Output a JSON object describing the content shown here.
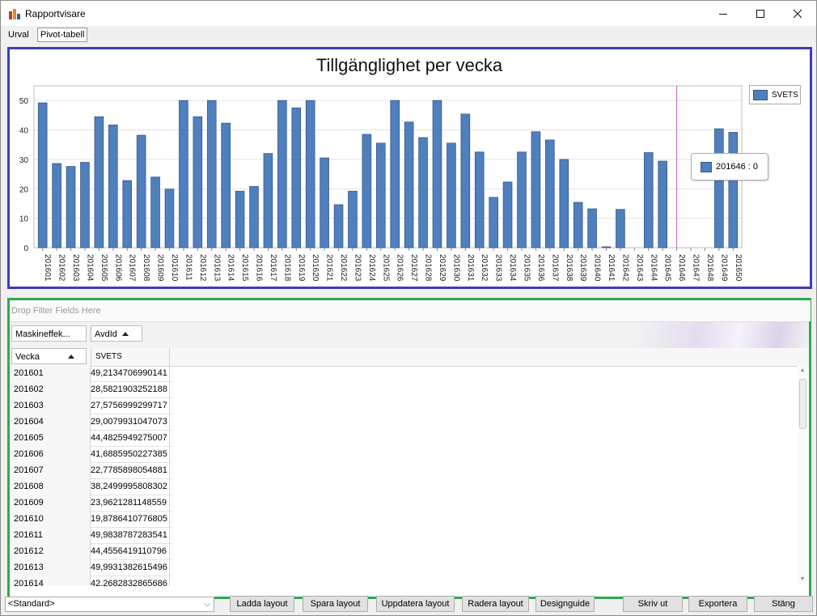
{
  "window": {
    "title": "Rapportvisare"
  },
  "tabs": [
    {
      "label": "Urval"
    },
    {
      "label": "Pivot-tabell"
    }
  ],
  "chart_panel": {
    "tooltip": "201646 : 0"
  },
  "chart_data": {
    "type": "bar",
    "title": "Tillgänglighet per vecka",
    "xlabel": "",
    "ylabel": "",
    "ylim": [
      0,
      55
    ],
    "yticks": [
      0,
      10,
      20,
      30,
      40,
      50
    ],
    "grid": true,
    "legend_position": "top-right",
    "categories": [
      "201601",
      "201602",
      "201603",
      "201604",
      "201605",
      "201606",
      "201607",
      "201608",
      "201609",
      "201610",
      "201611",
      "201612",
      "201613",
      "201614",
      "201615",
      "201616",
      "201617",
      "201618",
      "201619",
      "201620",
      "201621",
      "201622",
      "201623",
      "201624",
      "201625",
      "201626",
      "201627",
      "201628",
      "201629",
      "201630",
      "201631",
      "201632",
      "201633",
      "201634",
      "201635",
      "201636",
      "201637",
      "201638",
      "201639",
      "201640",
      "201641",
      "201642",
      "201643",
      "201644",
      "201645",
      "201646",
      "201647",
      "201648",
      "201649",
      "201650"
    ],
    "series": [
      {
        "name": "SVETS",
        "color": "#4f7fbd",
        "values": [
          49.2,
          28.6,
          27.6,
          29.0,
          44.5,
          41.7,
          22.8,
          38.2,
          24.0,
          19.9,
          50.0,
          44.5,
          50.0,
          42.3,
          19.2,
          20.8,
          32.0,
          50.0,
          47.5,
          50.0,
          30.5,
          14.6,
          19.2,
          38.5,
          35.5,
          50.0,
          42.7,
          37.4,
          50.0,
          35.5,
          45.4,
          32.5,
          17.1,
          22.3,
          32.5,
          39.4,
          36.6,
          30.0,
          15.4,
          13.2,
          0.3,
          13.0,
          0,
          32.3,
          29.4,
          0,
          0,
          0,
          40.4,
          39.2
        ]
      }
    ]
  },
  "pivot": {
    "filter_placeholder": "Drop Filter Fields Here",
    "data_field": "Maskineffek...",
    "column_field": "AvdId",
    "row_field": "Vecka",
    "column_header": "SVETS",
    "rows": [
      {
        "vecka": "201601",
        "value": "49,2134706990141"
      },
      {
        "vecka": "201602",
        "value": "28,5821903252188"
      },
      {
        "vecka": "201603",
        "value": "27,5756999299717"
      },
      {
        "vecka": "201604",
        "value": "29,0079931047073"
      },
      {
        "vecka": "201605",
        "value": "44,4825949275007"
      },
      {
        "vecka": "201606",
        "value": "41,6885950227385"
      },
      {
        "vecka": "201607",
        "value": "22,7785898054881"
      },
      {
        "vecka": "201608",
        "value": "38,2499995808302"
      },
      {
        "vecka": "201609",
        "value": "23,9621281148559"
      },
      {
        "vecka": "201610",
        "value": "19,8786410776805"
      },
      {
        "vecka": "201611",
        "value": "49,9838787283541"
      },
      {
        "vecka": "201612",
        "value": "44,4556419110796"
      },
      {
        "vecka": "201613",
        "value": "49,9931382615496"
      },
      {
        "vecka": "201614",
        "value": "42,2682832865686"
      }
    ]
  },
  "bottom": {
    "layout_select": "<Standard>",
    "buttons": {
      "load": "Ladda layout",
      "save": "Spara layout",
      "update": "Uppdatera layout",
      "delete": "Radera layout",
      "design": "Designguide",
      "print": "Skriv ut",
      "export": "Exportera",
      "close": "Stäng"
    }
  }
}
